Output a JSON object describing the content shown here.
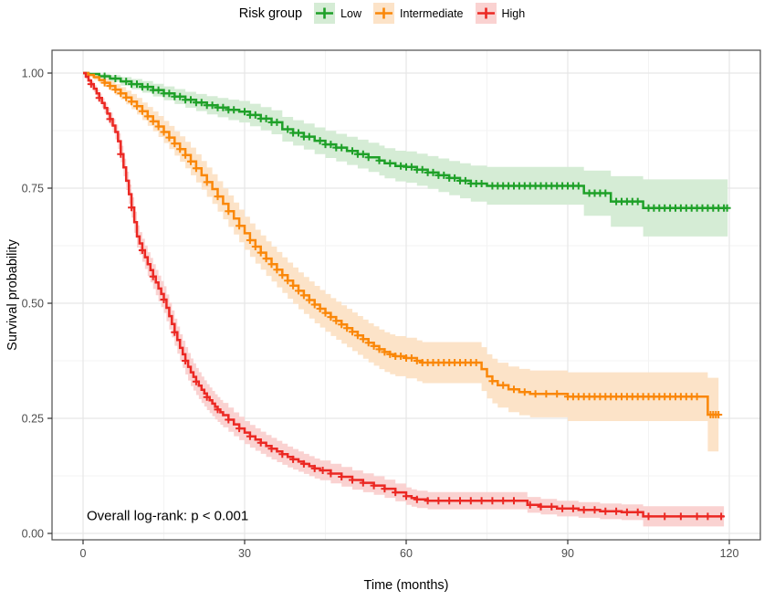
{
  "chart_data": {
    "type": "line",
    "subtype": "kaplan_meier_step_with_confidence_bands",
    "title": "",
    "xlabel": "Time (months)",
    "ylabel": "Survival probability",
    "xlim": [
      0,
      120
    ],
    "ylim": [
      0,
      1.0
    ],
    "xticks": [
      0,
      30,
      60,
      90,
      120
    ],
    "xtick_labels": [
      "0",
      "30",
      "60",
      "90",
      "120"
    ],
    "yticks": [
      0,
      0.25,
      0.5,
      0.75,
      1
    ],
    "ytick_labels": [
      "0.00",
      "0.25",
      "0.50",
      "0.75",
      "1.00"
    ],
    "grid": true,
    "legend_position": "top",
    "legend_title": "Risk group",
    "annotations": [
      {
        "text": "Overall log-rank: p < 0.001",
        "x_months": 1,
        "y_prob": 0.04
      }
    ],
    "series": [
      {
        "name": "Low",
        "color": "#1ea028",
        "band_color": "#d5ecd5",
        "points": [
          [
            0,
            1.0
          ],
          [
            1,
            0.998
          ],
          [
            3,
            0.993
          ],
          [
            5,
            0.988
          ],
          [
            7,
            0.982
          ],
          [
            9,
            0.976
          ],
          [
            11,
            0.97
          ],
          [
            13,
            0.963
          ],
          [
            15,
            0.956
          ],
          [
            17,
            0.949
          ],
          [
            19,
            0.942
          ],
          [
            21,
            0.936
          ],
          [
            23,
            0.93
          ],
          [
            25,
            0.925
          ],
          [
            27,
            0.92
          ],
          [
            29,
            0.916
          ],
          [
            31,
            0.909
          ],
          [
            33,
            0.901
          ],
          [
            35,
            0.893
          ],
          [
            37,
            0.878
          ],
          [
            39,
            0.87
          ],
          [
            41,
            0.862
          ],
          [
            43,
            0.853
          ],
          [
            45,
            0.845
          ],
          [
            47,
            0.838
          ],
          [
            49,
            0.831
          ],
          [
            51,
            0.824
          ],
          [
            53,
            0.817
          ],
          [
            55,
            0.81
          ],
          [
            56,
            0.804
          ],
          [
            58,
            0.798
          ],
          [
            60,
            0.796
          ],
          [
            62,
            0.79
          ],
          [
            64,
            0.784
          ],
          [
            66,
            0.778
          ],
          [
            68,
            0.772
          ],
          [
            70,
            0.766
          ],
          [
            72,
            0.76
          ],
          [
            75,
            0.755
          ],
          [
            93,
            0.739
          ],
          [
            98,
            0.721
          ],
          [
            104,
            0.707
          ],
          [
            119.7,
            0.707
          ]
        ],
        "ci": [
          [
            0,
            0.003
          ],
          [
            10,
            0.012
          ],
          [
            20,
            0.018
          ],
          [
            30,
            0.024
          ],
          [
            40,
            0.028
          ],
          [
            50,
            0.031
          ],
          [
            60,
            0.034
          ],
          [
            70,
            0.038
          ],
          [
            80,
            0.044
          ],
          [
            92,
            0.048
          ],
          [
            98,
            0.055
          ],
          [
            104,
            0.062
          ],
          [
            120,
            0.065
          ]
        ],
        "censor_times": [
          4,
          6,
          8,
          9,
          10,
          11,
          12,
          13,
          14,
          15,
          16,
          17,
          18,
          19,
          20,
          21,
          22,
          23,
          24,
          25,
          26,
          27,
          28,
          30,
          31,
          32,
          33,
          34,
          35,
          36,
          38,
          39,
          40,
          41,
          42,
          44,
          45,
          46,
          47,
          48,
          50,
          51,
          52,
          53,
          55,
          57,
          59,
          60,
          61,
          62,
          63,
          64,
          65,
          66,
          67,
          68,
          69,
          70,
          71,
          72,
          73,
          74,
          76,
          77,
          78,
          79,
          80,
          81,
          82,
          83,
          84,
          85,
          86,
          87,
          88,
          89,
          90,
          91,
          92,
          94,
          95,
          96,
          97,
          99,
          100,
          101,
          102,
          103,
          105,
          106,
          107,
          108,
          109,
          110,
          111,
          112,
          113,
          114,
          115,
          116,
          117,
          118,
          119,
          119.6
        ]
      },
      {
        "name": "Intermediate",
        "color": "#fa8709",
        "band_color": "#fce3c8",
        "points": [
          [
            0,
            1.0
          ],
          [
            1,
            0.996
          ],
          [
            2,
            0.991
          ],
          [
            3,
            0.985
          ],
          [
            4,
            0.979
          ],
          [
            5,
            0.972
          ],
          [
            6,
            0.964
          ],
          [
            7,
            0.956
          ],
          [
            8,
            0.947
          ],
          [
            9,
            0.938
          ],
          [
            10,
            0.928
          ],
          [
            11,
            0.917
          ],
          [
            12,
            0.906
          ],
          [
            13,
            0.895
          ],
          [
            14,
            0.884
          ],
          [
            15,
            0.872
          ],
          [
            16,
            0.86
          ],
          [
            17,
            0.847
          ],
          [
            18,
            0.835
          ],
          [
            19,
            0.822
          ],
          [
            20,
            0.808
          ],
          [
            21,
            0.793
          ],
          [
            22,
            0.778
          ],
          [
            23,
            0.763
          ],
          [
            24,
            0.748
          ],
          [
            25,
            0.732
          ],
          [
            26,
            0.716
          ],
          [
            27,
            0.7
          ],
          [
            28,
            0.684
          ],
          [
            29,
            0.668
          ],
          [
            30,
            0.652
          ],
          [
            31,
            0.637
          ],
          [
            32,
            0.623
          ],
          [
            33,
            0.61
          ],
          [
            34,
            0.597
          ],
          [
            35,
            0.585
          ],
          [
            36,
            0.573
          ],
          [
            37,
            0.561
          ],
          [
            38,
            0.549
          ],
          [
            39,
            0.538
          ],
          [
            40,
            0.527
          ],
          [
            41,
            0.517
          ],
          [
            42,
            0.507
          ],
          [
            43,
            0.497
          ],
          [
            44,
            0.488
          ],
          [
            45,
            0.479
          ],
          [
            46,
            0.47
          ],
          [
            47,
            0.462
          ],
          [
            48,
            0.454
          ],
          [
            49,
            0.446
          ],
          [
            50,
            0.438
          ],
          [
            51,
            0.43
          ],
          [
            52,
            0.422
          ],
          [
            53,
            0.414
          ],
          [
            54,
            0.407
          ],
          [
            55,
            0.4
          ],
          [
            56,
            0.394
          ],
          [
            57,
            0.389
          ],
          [
            58,
            0.385
          ],
          [
            60,
            0.381
          ],
          [
            62,
            0.375
          ],
          [
            63,
            0.371
          ],
          [
            74,
            0.357
          ],
          [
            75,
            0.341
          ],
          [
            76,
            0.331
          ],
          [
            77,
            0.322
          ],
          [
            79,
            0.313
          ],
          [
            81,
            0.307
          ],
          [
            83,
            0.303
          ],
          [
            90,
            0.297
          ],
          [
            116,
            0.258
          ],
          [
            118,
            0.258
          ]
        ],
        "ci": [
          [
            0,
            0.003
          ],
          [
            10,
            0.018
          ],
          [
            20,
            0.03
          ],
          [
            30,
            0.036
          ],
          [
            40,
            0.04
          ],
          [
            50,
            0.042
          ],
          [
            60,
            0.044
          ],
          [
            70,
            0.046
          ],
          [
            80,
            0.05
          ],
          [
            90,
            0.053
          ],
          [
            115,
            0.055
          ],
          [
            116,
            0.08
          ],
          [
            118,
            0.08
          ]
        ],
        "censor_times": [
          4,
          5,
          6,
          7,
          8,
          9,
          10,
          11,
          12,
          13,
          14,
          15,
          16,
          17,
          18,
          19,
          20,
          21,
          23,
          25,
          27,
          29,
          31,
          32,
          33,
          34,
          35,
          36,
          37,
          38,
          39,
          40,
          41,
          42,
          43,
          44,
          45,
          46,
          47,
          48,
          49,
          50,
          51,
          52,
          53,
          54,
          55,
          56,
          57,
          58,
          59,
          60,
          61,
          62,
          63,
          64,
          65,
          66,
          67,
          68,
          69,
          70,
          71,
          72,
          73,
          76,
          78,
          80,
          82,
          84,
          86,
          88,
          90,
          91,
          92,
          93,
          94,
          95,
          96,
          97,
          98,
          99,
          100,
          101,
          102,
          103,
          104,
          105,
          106,
          107,
          108,
          109,
          110,
          111,
          112,
          113,
          114,
          116.5,
          117,
          117.5,
          118
        ]
      },
      {
        "name": "High",
        "color": "#eb2823",
        "band_color": "#fad2d1",
        "points": [
          [
            0,
            1.0
          ],
          [
            0.5,
            0.992
          ],
          [
            1,
            0.984
          ],
          [
            1.5,
            0.976
          ],
          [
            2,
            0.966
          ],
          [
            2.5,
            0.956
          ],
          [
            3,
            0.946
          ],
          [
            3.5,
            0.935
          ],
          [
            4,
            0.924
          ],
          [
            4.5,
            0.912
          ],
          [
            5,
            0.9
          ],
          [
            5.5,
            0.886
          ],
          [
            6,
            0.872
          ],
          [
            6.5,
            0.852
          ],
          [
            7,
            0.824
          ],
          [
            7.5,
            0.795
          ],
          [
            8,
            0.766
          ],
          [
            8.5,
            0.737
          ],
          [
            9,
            0.708
          ],
          [
            9.5,
            0.676
          ],
          [
            10,
            0.645
          ],
          [
            10.5,
            0.63
          ],
          [
            11,
            0.615
          ],
          [
            11.5,
            0.6
          ],
          [
            12,
            0.585
          ],
          [
            12.5,
            0.572
          ],
          [
            13,
            0.558
          ],
          [
            13.5,
            0.545
          ],
          [
            14,
            0.532
          ],
          [
            14.5,
            0.52
          ],
          [
            15,
            0.508
          ],
          [
            15.5,
            0.49
          ],
          [
            16,
            0.472
          ],
          [
            16.5,
            0.455
          ],
          [
            17,
            0.437
          ],
          [
            17.5,
            0.42
          ],
          [
            18,
            0.403
          ],
          [
            18.5,
            0.389
          ],
          [
            19,
            0.375
          ],
          [
            19.5,
            0.362
          ],
          [
            20,
            0.35
          ],
          [
            20.5,
            0.34
          ],
          [
            21,
            0.33
          ],
          [
            21.5,
            0.321
          ],
          [
            22,
            0.312
          ],
          [
            22.5,
            0.304
          ],
          [
            23,
            0.296
          ],
          [
            23.5,
            0.289
          ],
          [
            24,
            0.282
          ],
          [
            24.5,
            0.275
          ],
          [
            25,
            0.269
          ],
          [
            25.5,
            0.263
          ],
          [
            26,
            0.257
          ],
          [
            27,
            0.247
          ],
          [
            28,
            0.237
          ],
          [
            29,
            0.228
          ],
          [
            30,
            0.219
          ],
          [
            31,
            0.211
          ],
          [
            32,
            0.204
          ],
          [
            33,
            0.197
          ],
          [
            34,
            0.19
          ],
          [
            35,
            0.184
          ],
          [
            36,
            0.178
          ],
          [
            37,
            0.172
          ],
          [
            38,
            0.166
          ],
          [
            39,
            0.161
          ],
          [
            40,
            0.156
          ],
          [
            41,
            0.151
          ],
          [
            42,
            0.146
          ],
          [
            43,
            0.141
          ],
          [
            44,
            0.137
          ],
          [
            46,
            0.13
          ],
          [
            48,
            0.123
          ],
          [
            50,
            0.116
          ],
          [
            52,
            0.11
          ],
          [
            54,
            0.104
          ],
          [
            56,
            0.097
          ],
          [
            58,
            0.089
          ],
          [
            60,
            0.081
          ],
          [
            61,
            0.077
          ],
          [
            62,
            0.074
          ],
          [
            64,
            0.071
          ],
          [
            82.5,
            0.062
          ],
          [
            85,
            0.058
          ],
          [
            88,
            0.054
          ],
          [
            92,
            0.051
          ],
          [
            96,
            0.048
          ],
          [
            100,
            0.046
          ],
          [
            104,
            0.037
          ],
          [
            119,
            0.037
          ]
        ],
        "ci": [
          [
            0,
            0.003
          ],
          [
            5,
            0.014
          ],
          [
            10,
            0.024
          ],
          [
            15,
            0.029
          ],
          [
            20,
            0.03
          ],
          [
            25,
            0.027
          ],
          [
            30,
            0.025
          ],
          [
            40,
            0.022
          ],
          [
            50,
            0.021
          ],
          [
            60,
            0.019
          ],
          [
            70,
            0.018
          ],
          [
            85,
            0.017
          ],
          [
            100,
            0.017
          ],
          [
            104,
            0.022
          ],
          [
            119,
            0.024
          ]
        ],
        "censor_times": [
          1.5,
          3,
          5,
          7,
          9,
          11,
          13,
          15,
          17,
          19,
          21,
          23,
          25,
          27,
          29,
          31,
          33,
          35,
          37,
          39,
          41,
          43,
          44.5,
          46,
          48,
          50,
          52,
          54,
          56,
          58,
          60,
          62,
          64,
          66,
          68,
          70,
          72,
          74,
          76,
          78,
          80,
          83,
          85,
          87,
          89,
          91,
          93,
          95,
          97,
          99,
          101,
          103,
          105,
          108,
          111,
          114,
          116,
          118.5
        ]
      }
    ],
    "style": {
      "panel_border_color": "#4d4d4d",
      "grid_major_color": "#e7e7e7",
      "grid_minor_color": "#f3f3f3",
      "tick_color": "#333333",
      "tick_label_color": "#4d4d4d"
    }
  }
}
